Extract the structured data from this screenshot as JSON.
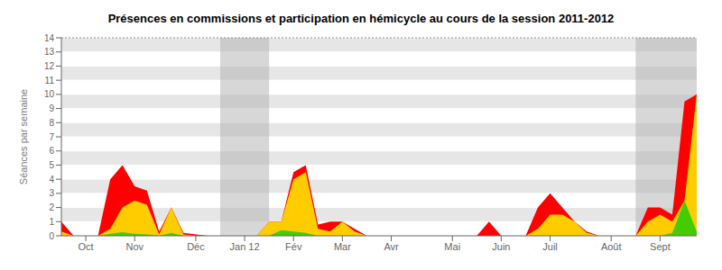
{
  "chart_data": {
    "type": "area",
    "title": "Présences en commissions et participation en hémicycle au cours de la session 2011-2012",
    "y_label": "Séances par semaine",
    "x": [
      0,
      1,
      2,
      3,
      4,
      5,
      6,
      7,
      8,
      9,
      10,
      11,
      12,
      13,
      14,
      15,
      16,
      17,
      18,
      19,
      20,
      21,
      22,
      23,
      24,
      25,
      26,
      27,
      28,
      29,
      30,
      31,
      32,
      33,
      34,
      35,
      36,
      37,
      38,
      39,
      40,
      41,
      42,
      43,
      44,
      45,
      46,
      47,
      48,
      49,
      50,
      51,
      52
    ],
    "xlim": [
      0,
      52
    ],
    "xticks": [
      {
        "value": 2,
        "label": "Oct"
      },
      {
        "value": 6,
        "label": "Nov"
      },
      {
        "value": 11,
        "label": "Déc"
      },
      {
        "value": 15,
        "label": "Jan 12"
      },
      {
        "value": 19,
        "label": "Fév"
      },
      {
        "value": 23,
        "label": "Mar"
      },
      {
        "value": 27,
        "label": "Avr"
      },
      {
        "value": 32,
        "label": "Mai"
      },
      {
        "value": 36,
        "label": "Juin"
      },
      {
        "value": 40,
        "label": "Juil"
      },
      {
        "value": 45,
        "label": "Août"
      },
      {
        "value": 49,
        "label": "Sept"
      }
    ],
    "ylim": [
      0,
      14
    ],
    "yticks": [
      0,
      1,
      2,
      3,
      4,
      5,
      6,
      7,
      8,
      9,
      10,
      11,
      12,
      13,
      14
    ],
    "grid": true,
    "shaded_ranges": [
      [
        13,
        17
      ],
      [
        47,
        52
      ]
    ],
    "series": [
      {
        "color": "#ff0000",
        "values": [
          1.0,
          0.0,
          0.0,
          0.0,
          4.0,
          5.0,
          3.5,
          3.2,
          0.3,
          2.0,
          0.2,
          0.1,
          0.0,
          0.0,
          0.0,
          0.0,
          0.0,
          1.0,
          1.0,
          4.5,
          5.0,
          0.8,
          1.0,
          1.0,
          0.5,
          0.0,
          0.0,
          0.0,
          0.0,
          0.0,
          0.0,
          0.0,
          0.0,
          0.0,
          0.0,
          1.0,
          0.0,
          0.0,
          0.0,
          2.0,
          3.0,
          2.0,
          1.0,
          0.3,
          0.0,
          0.0,
          0.0,
          0.0,
          2.0,
          2.0,
          1.5,
          9.5,
          10.0
        ]
      },
      {
        "color": "#ffcc00",
        "values": [
          0.3,
          0.0,
          0.0,
          0.0,
          0.5,
          2.0,
          2.5,
          2.2,
          0.1,
          2.0,
          0.1,
          0.0,
          0.0,
          0.0,
          0.0,
          0.0,
          0.0,
          1.0,
          1.0,
          4.0,
          4.5,
          0.5,
          0.3,
          1.0,
          0.3,
          0.0,
          0.0,
          0.0,
          0.0,
          0.0,
          0.0,
          0.0,
          0.0,
          0.0,
          0.0,
          0.0,
          0.0,
          0.0,
          0.0,
          0.5,
          1.5,
          1.5,
          1.0,
          0.2,
          0.0,
          0.0,
          0.0,
          0.0,
          1.0,
          1.5,
          1.0,
          2.5,
          10.0
        ]
      },
      {
        "color": "#44cc00",
        "values": [
          0.0,
          0.0,
          0.0,
          0.0,
          0.15,
          0.25,
          0.15,
          0.1,
          0.0,
          0.2,
          0.0,
          0.0,
          0.0,
          0.0,
          0.0,
          0.0,
          0.0,
          0.0,
          0.4,
          0.3,
          0.2,
          0.0,
          0.0,
          0.0,
          0.0,
          0.0,
          0.0,
          0.0,
          0.0,
          0.0,
          0.0,
          0.0,
          0.0,
          0.0,
          0.0,
          0.0,
          0.0,
          0.0,
          0.0,
          0.0,
          0.0,
          0.0,
          0.0,
          0.0,
          0.0,
          0.0,
          0.0,
          0.0,
          0.0,
          0.0,
          0.2,
          2.5,
          0.3
        ]
      }
    ]
  }
}
